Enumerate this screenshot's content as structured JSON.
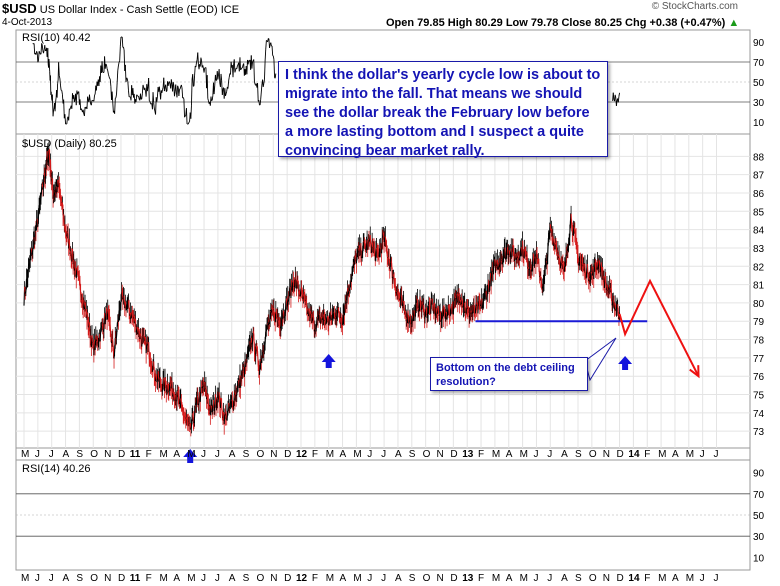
{
  "header": {
    "symbol": "$USD",
    "name": "US Dollar Index - Cash Settle (EOD)",
    "exchange": "ICE",
    "date": "4-Oct-2013",
    "quote": "Open 79.85  High 80.29  Low 79.78  Close 80.25  Chg +0.38 (+0.47%)",
    "quote_arrow": "▲",
    "watermark": "© StockCharts.com"
  },
  "panels": {
    "rsi_top_label": "RSI(10) 40.42",
    "price_label": "$USD (Daily) 80.25",
    "rsi_bottom_label": "RSI(14) 40.26"
  },
  "annotations": {
    "main_callout": "I think the dollar's yearly cycle low is about to migrate into the fall. That means we should see the dollar break the February low before a more lasting bottom and I suspect a quite convincing bear market rally.",
    "bottom_callout": "Bottom on the debt ceiling resolution?"
  },
  "chart_data": {
    "type": "line",
    "title": "$USD (Daily) 80.25",
    "price_axis": {
      "ylim": [
        72.3,
        89.0
      ],
      "ticks": [
        73,
        74,
        75,
        76,
        77,
        78,
        79,
        80,
        81,
        82,
        83,
        84,
        85,
        86,
        87,
        88
      ]
    },
    "rsi_axis": {
      "ylim": [
        0,
        100
      ],
      "ticks": [
        10,
        30,
        50,
        70,
        90
      ]
    },
    "month_ticks": [
      "M",
      "J",
      "J",
      "A",
      "S",
      "O",
      "N",
      "D",
      "11",
      "F",
      "M",
      "A",
      "M",
      "J",
      "J",
      "A",
      "S",
      "O",
      "N",
      "D",
      "12",
      "F",
      "M",
      "A",
      "M",
      "J",
      "J",
      "A",
      "S",
      "O",
      "N",
      "D",
      "13",
      "F",
      "M",
      "A",
      "M",
      "J",
      "J",
      "A",
      "S",
      "O",
      "N",
      "D",
      "14",
      "F",
      "M",
      "A",
      "M",
      "J",
      "J"
    ],
    "price_path": [
      {
        "t": 0,
        "v": 80.3
      },
      {
        "t": 0.5,
        "v": 82.5
      },
      {
        "t": 1.0,
        "v": 84.5
      },
      {
        "t": 1.5,
        "v": 87.0
      },
      {
        "t": 1.8,
        "v": 88.3
      },
      {
        "t": 2.1,
        "v": 86.0
      },
      {
        "t": 2.5,
        "v": 86.4
      },
      {
        "t": 3.0,
        "v": 84.0
      },
      {
        "t": 3.5,
        "v": 82.5
      },
      {
        "t": 4.0,
        "v": 81.0
      },
      {
        "t": 4.5,
        "v": 79.5
      },
      {
        "t": 5.0,
        "v": 77.5
      },
      {
        "t": 5.5,
        "v": 78.3
      },
      {
        "t": 6.0,
        "v": 79.5
      },
      {
        "t": 6.5,
        "v": 77.2
      },
      {
        "t": 7.0,
        "v": 80.2
      },
      {
        "t": 7.5,
        "v": 79.8
      },
      {
        "t": 8.0,
        "v": 79.0
      },
      {
        "t": 8.5,
        "v": 78.0
      },
      {
        "t": 9.0,
        "v": 77.5
      },
      {
        "t": 9.5,
        "v": 76.0
      },
      {
        "t": 10.0,
        "v": 75.5
      },
      {
        "t": 10.5,
        "v": 75.5
      },
      {
        "t": 11.0,
        "v": 75.0
      },
      {
        "t": 11.5,
        "v": 74.0
      },
      {
        "t": 12.0,
        "v": 73.0
      },
      {
        "t": 12.5,
        "v": 74.5
      },
      {
        "t": 13.0,
        "v": 75.5
      },
      {
        "t": 13.5,
        "v": 74.0
      },
      {
        "t": 14.0,
        "v": 75.0
      },
      {
        "t": 14.5,
        "v": 73.7
      },
      {
        "t": 15.0,
        "v": 74.5
      },
      {
        "t": 15.5,
        "v": 75.5
      },
      {
        "t": 16.0,
        "v": 76.5
      },
      {
        "t": 16.5,
        "v": 78.2
      },
      {
        "t": 17.0,
        "v": 76.5
      },
      {
        "t": 17.5,
        "v": 78.5
      },
      {
        "t": 18.0,
        "v": 79.5
      },
      {
        "t": 18.5,
        "v": 79.0
      },
      {
        "t": 19.0,
        "v": 80.0
      },
      {
        "t": 19.5,
        "v": 81.3
      },
      {
        "t": 20.0,
        "v": 80.5
      },
      {
        "t": 20.5,
        "v": 79.5
      },
      {
        "t": 21.0,
        "v": 78.8
      },
      {
        "t": 21.5,
        "v": 79.2
      },
      {
        "t": 22.0,
        "v": 79.0
      },
      {
        "t": 22.5,
        "v": 79.5
      },
      {
        "t": 23.0,
        "v": 79.2
      },
      {
        "t": 23.5,
        "v": 81.0
      },
      {
        "t": 24.0,
        "v": 82.5
      },
      {
        "t": 24.5,
        "v": 83.0
      },
      {
        "t": 25.0,
        "v": 83.3
      },
      {
        "t": 25.5,
        "v": 82.5
      },
      {
        "t": 26.0,
        "v": 83.5
      },
      {
        "t": 26.5,
        "v": 82.0
      },
      {
        "t": 27.0,
        "v": 80.5
      },
      {
        "t": 27.5,
        "v": 79.5
      },
      {
        "t": 28.0,
        "v": 79.0
      },
      {
        "t": 28.5,
        "v": 80.0
      },
      {
        "t": 29.0,
        "v": 79.5
      },
      {
        "t": 29.5,
        "v": 79.8
      },
      {
        "t": 30.0,
        "v": 79.3
      },
      {
        "t": 30.5,
        "v": 79.5
      },
      {
        "t": 31.0,
        "v": 79.8
      },
      {
        "t": 31.5,
        "v": 80.5
      },
      {
        "t": 32.0,
        "v": 79.5
      },
      {
        "t": 32.5,
        "v": 79.5
      },
      {
        "t": 33.0,
        "v": 79.8
      },
      {
        "t": 33.5,
        "v": 80.8
      },
      {
        "t": 34.0,
        "v": 82.0
      },
      {
        "t": 34.5,
        "v": 82.5
      },
      {
        "t": 35.0,
        "v": 83.0
      },
      {
        "t": 35.5,
        "v": 82.5
      },
      {
        "t": 36.0,
        "v": 83.0
      },
      {
        "t": 36.5,
        "v": 82.0
      },
      {
        "t": 37.0,
        "v": 82.5
      },
      {
        "t": 37.5,
        "v": 80.8
      },
      {
        "t": 38.0,
        "v": 84.0
      },
      {
        "t": 38.5,
        "v": 83.0
      },
      {
        "t": 39.0,
        "v": 81.5
      },
      {
        "t": 39.5,
        "v": 84.7
      },
      {
        "t": 40.0,
        "v": 82.5
      },
      {
        "t": 40.5,
        "v": 81.8
      },
      {
        "t": 41.0,
        "v": 81.5
      },
      {
        "t": 41.5,
        "v": 82.3
      },
      {
        "t": 42.0,
        "v": 81.0
      },
      {
        "t": 42.5,
        "v": 80.2
      },
      {
        "t": 43.0,
        "v": 79.4
      }
    ],
    "projection": [
      {
        "t": 43.0,
        "v": 79.4
      },
      {
        "t": 43.4,
        "v": 78.3
      },
      {
        "t": 45.2,
        "v": 81.2
      },
      {
        "t": 48.7,
        "v": 76.0
      }
    ],
    "support_line": {
      "t": [
        32.6,
        45.0
      ],
      "v": 79.0
    },
    "up_arrows": [
      {
        "t": 12.0
      },
      {
        "t": 22.0
      },
      {
        "t": 43.4
      }
    ],
    "colors": {
      "up": "#000000",
      "down": "#d41a1a",
      "projection": "#ee1111",
      "support": "#1a1ad6",
      "arrow": "#1414dc"
    }
  }
}
